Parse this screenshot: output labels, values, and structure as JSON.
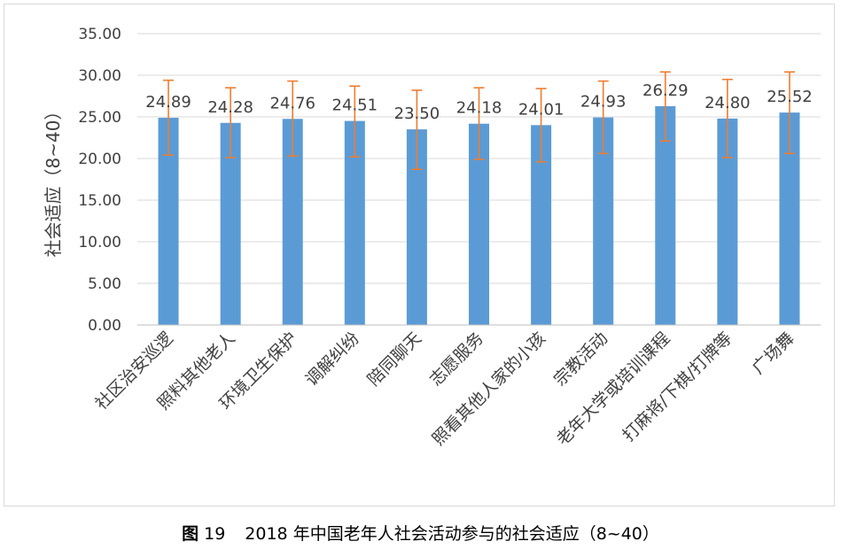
{
  "chart_data": {
    "type": "bar",
    "categories": [
      "社区治安巡逻",
      "照料其他老人",
      "环境卫生保护",
      "调解纠纷",
      "陪同聊天",
      "志愿服务",
      "照看其他人家的小孩",
      "宗教活动",
      "老年大学或培训课程",
      "打麻将/下棋/打牌等",
      "广场舞"
    ],
    "values": [
      24.89,
      24.28,
      24.76,
      24.51,
      23.5,
      24.18,
      24.01,
      24.93,
      26.29,
      24.8,
      25.52
    ],
    "data_labels": [
      "24.89",
      "24.28",
      "24.76",
      "24.51",
      "23.50",
      "24.18",
      "24.01",
      "24.93",
      "26.29",
      "24.80",
      "25.52"
    ],
    "error_upper": [
      29.4,
      28.5,
      29.3,
      28.7,
      28.2,
      28.5,
      28.4,
      29.3,
      30.4,
      29.5,
      30.4
    ],
    "error_lower": [
      20.4,
      20.1,
      20.3,
      20.2,
      18.7,
      19.9,
      19.6,
      20.6,
      22.1,
      20.1,
      20.6
    ],
    "ylabel": "社会适应（8~40）",
    "ylim": [
      0,
      35
    ],
    "yticks": [
      "0.00",
      "5.00",
      "10.00",
      "15.00",
      "20.00",
      "25.00",
      "30.00",
      "35.00"
    ],
    "grid": true,
    "legend": "none",
    "colors": {
      "bar": "#5b9bd5",
      "error_bar": "#ed7d31",
      "grid": "#d9d9d9",
      "text": "#404040"
    }
  },
  "caption": {
    "label": "图",
    "number": "19",
    "title": "2018 年中国老年人社会活动参与的社会适应（8~40）"
  }
}
